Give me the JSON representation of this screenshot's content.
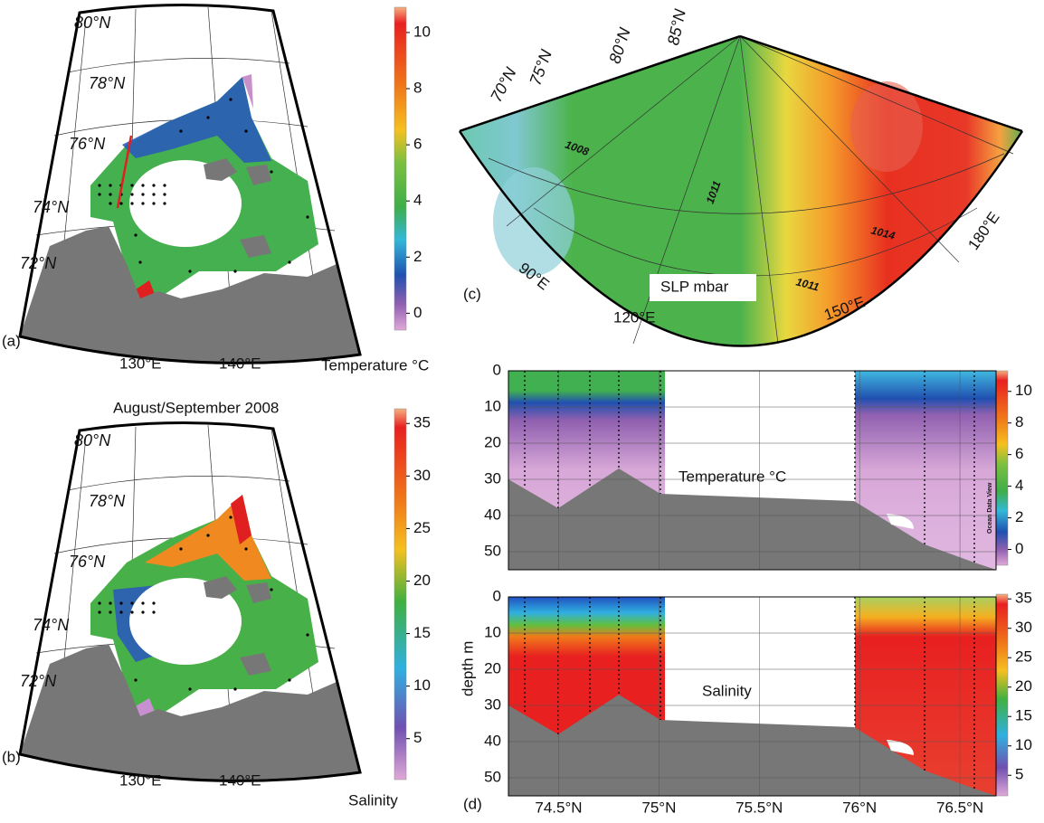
{
  "figure_title": "August/September 2008",
  "panel_a": {
    "label": "(a)",
    "lat_labels": [
      "80°N",
      "78°N",
      "76°N",
      "74°N",
      "72°N"
    ],
    "lon_labels": [
      "130°E",
      "140°E"
    ],
    "colorbar": {
      "title": "Temperature °C",
      "lim": [
        -0.6,
        10.9
      ],
      "ticks": [
        0,
        2,
        4,
        6,
        8,
        10
      ]
    }
  },
  "panel_b": {
    "label": "(b)",
    "lat_labels": [
      "80°N",
      "78°N",
      "76°N",
      "74°N",
      "72°N"
    ],
    "lon_labels": [
      "130°E",
      "140°E"
    ],
    "colorbar": {
      "title": "Salinity",
      "lim": [
        1.1,
        36.4
      ],
      "ticks": [
        5,
        10,
        15,
        20,
        25,
        30,
        35
      ]
    }
  },
  "panel_c": {
    "label": "(c)",
    "lat_labels": [
      "70°N",
      "75°N",
      "80°N",
      "85°N"
    ],
    "lon_labels": [
      "90°E",
      "120°E",
      "150°E",
      "180°E"
    ],
    "isobars": [
      "1008",
      "1011",
      "1011",
      "1014"
    ],
    "legend": "SLP mbar"
  },
  "panel_d": {
    "label": "(d)",
    "y_label": "depth m",
    "xlim": [
      74.25,
      76.68
    ],
    "ylim": [
      0,
      55
    ],
    "xticks": [
      {
        "value": 74.5,
        "label": "74.5°N"
      },
      {
        "value": 75,
        "label": "75°N"
      },
      {
        "value": 75.5,
        "label": "75.5°N"
      },
      {
        "value": 76,
        "label": "76°N"
      },
      {
        "value": 76.5,
        "label": "76.5°N"
      }
    ],
    "yticks": [
      0,
      10,
      20,
      30,
      40,
      50
    ],
    "temperature": {
      "title": "Temperature °C",
      "colorbar_lim": [
        -1,
        11.3
      ],
      "colorbar_ticks": [
        0,
        2,
        4,
        6,
        8,
        10
      ]
    },
    "salinity": {
      "title": "Salinity",
      "colorbar_lim": [
        1.5,
        35.8
      ],
      "colorbar_ticks": [
        5,
        10,
        15,
        20,
        25,
        30,
        35
      ]
    },
    "watermark": "Ocean Data View"
  }
}
